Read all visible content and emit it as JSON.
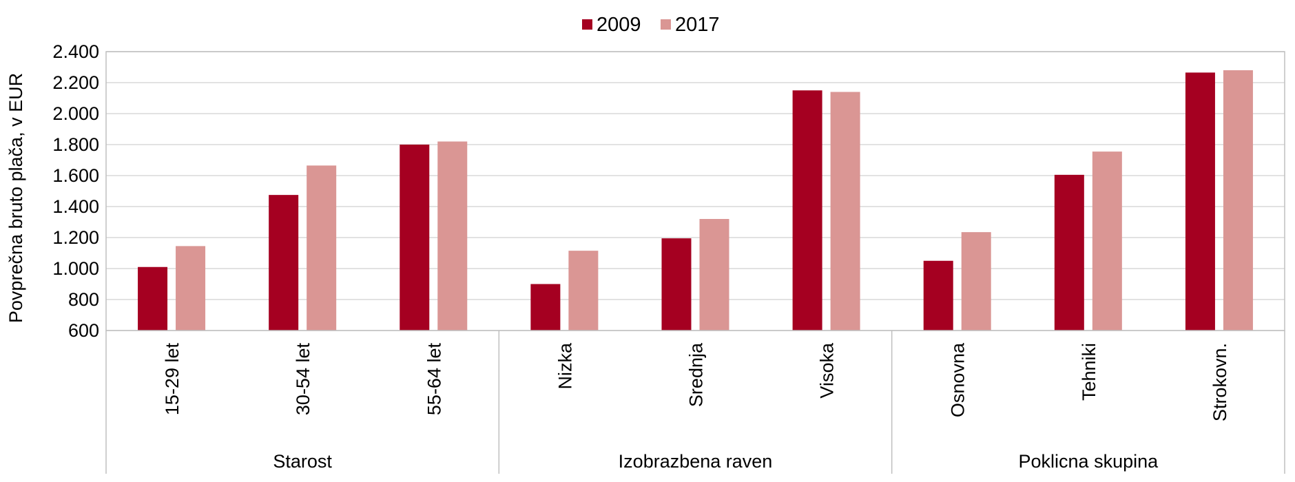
{
  "chart_data": {
    "type": "bar",
    "ylabel": "Povprečna bruto plača, v EUR",
    "xlabel": "",
    "ylim": [
      600,
      2400
    ],
    "yticks": [
      600,
      800,
      1000,
      1200,
      1400,
      1600,
      1800,
      2000,
      2200,
      2400
    ],
    "ytick_labels": [
      "600",
      "800",
      "1.000",
      "1.200",
      "1.400",
      "1.600",
      "1.800",
      "2.000",
      "2.200",
      "2.400"
    ],
    "grid": true,
    "legend_position": "top-center",
    "groups": [
      {
        "label": "Starost",
        "categories": [
          "15-29 let",
          "30-54 let",
          "55-64 let"
        ]
      },
      {
        "label": "Izobrazbena raven",
        "categories": [
          "Nizka",
          "Srednja",
          "Visoka"
        ]
      },
      {
        "label": "Poklicna skupina",
        "categories": [
          "Osnovna",
          "Tehniki",
          "Strokovn."
        ]
      }
    ],
    "categories": [
      "15-29 let",
      "30-54 let",
      "55-64 let",
      "Nizka",
      "Srednja",
      "Visoka",
      "Osnovna",
      "Tehniki",
      "Strokovn."
    ],
    "series": [
      {
        "name": "2009",
        "color": "#a50021",
        "values": [
          1010,
          1475,
          1800,
          900,
          1195,
          2150,
          1050,
          1605,
          2265
        ]
      },
      {
        "name": "2017",
        "color": "#da9694",
        "values": [
          1145,
          1665,
          1820,
          1115,
          1320,
          2140,
          1235,
          1755,
          2280
        ]
      }
    ]
  }
}
